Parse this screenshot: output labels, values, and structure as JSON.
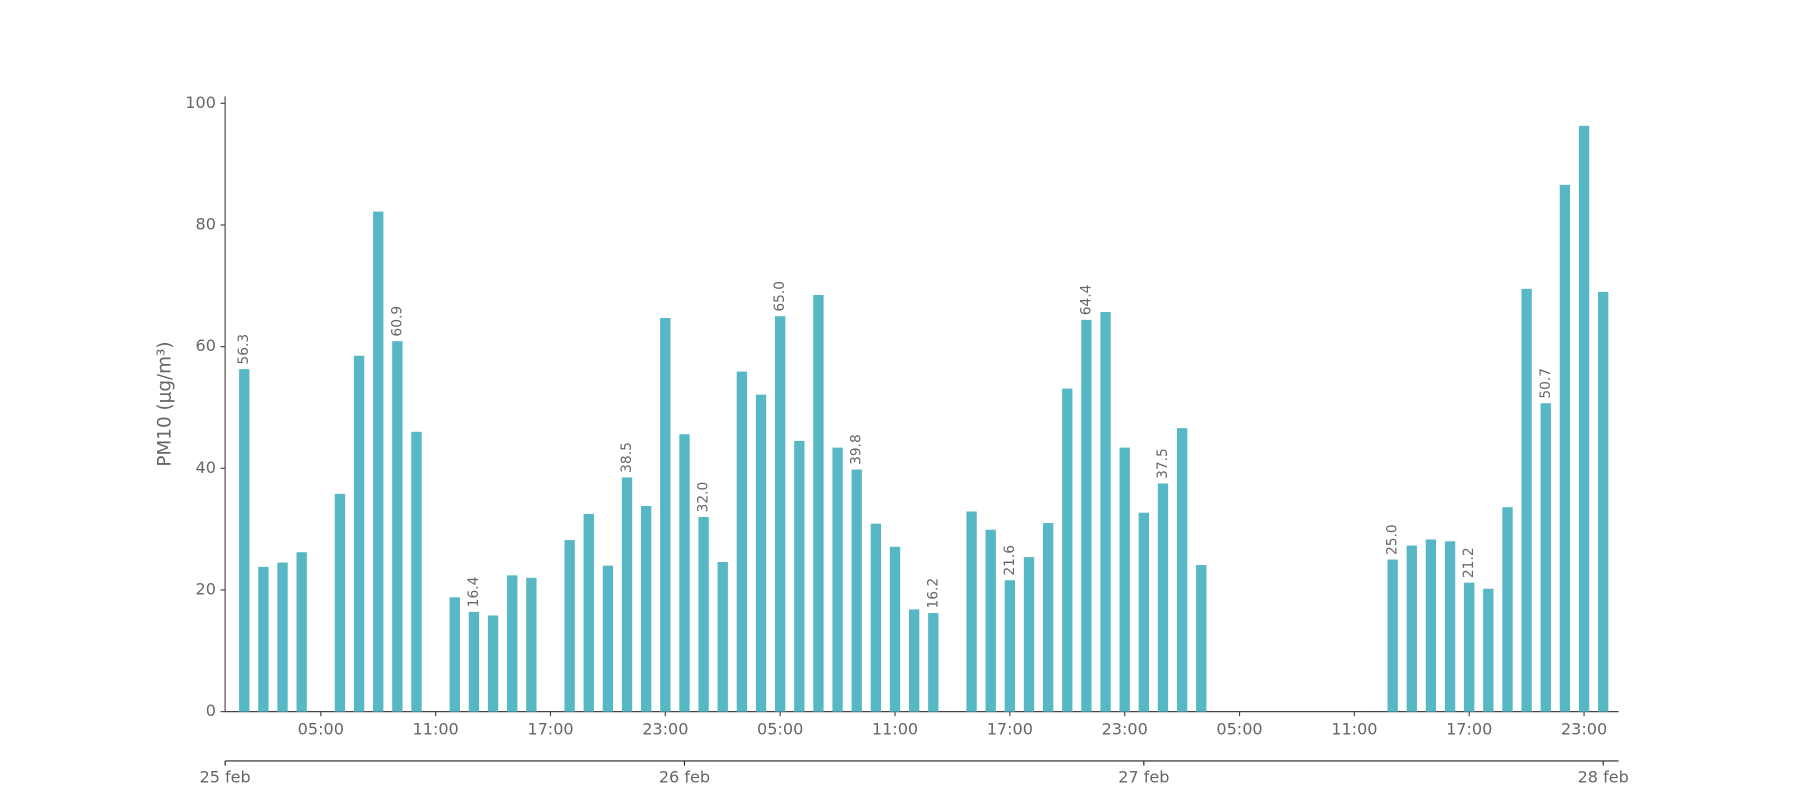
{
  "chart_data": {
    "type": "bar",
    "y_label": "PM10 (μg/m³)",
    "color": "#56b8c4",
    "x": [
      1,
      2,
      3,
      4,
      6,
      7,
      8,
      9,
      10,
      12,
      13,
      14,
      15,
      16,
      18,
      19,
      20,
      21,
      22,
      23,
      24,
      25,
      26,
      27,
      28,
      29,
      30,
      31,
      32,
      33,
      34,
      35,
      36,
      37,
      39,
      40,
      41,
      42,
      43,
      44,
      45,
      46,
      47,
      48,
      49,
      50,
      51,
      61,
      62,
      63,
      64,
      65,
      66,
      67,
      68,
      69,
      70,
      71,
      72
    ],
    "values": [
      56.3,
      23.8,
      24.5,
      26.2,
      35.8,
      58.5,
      82.2,
      60.9,
      46.0,
      18.8,
      16.4,
      15.8,
      22.4,
      22.0,
      28.2,
      32.5,
      24.0,
      38.5,
      33.8,
      64.7,
      45.6,
      32.0,
      24.6,
      55.9,
      52.1,
      65.0,
      44.5,
      68.5,
      43.4,
      39.8,
      30.9,
      27.1,
      16.8,
      16.2,
      32.9,
      29.9,
      21.6,
      25.4,
      31.0,
      53.1,
      64.4,
      65.7,
      43.4,
      32.7,
      37.5,
      46.6,
      24.1,
      25.0,
      27.3,
      28.3,
      28.0,
      21.2,
      20.2,
      33.6,
      69.5,
      50.7,
      86.6,
      96.3,
      69.0
    ],
    "value_labels": [
      "56.3",
      null,
      null,
      null,
      null,
      null,
      null,
      "60.9",
      null,
      null,
      "16.4",
      null,
      null,
      null,
      null,
      null,
      null,
      "38.5",
      null,
      null,
      null,
      "32.0",
      null,
      null,
      null,
      "65.0",
      null,
      null,
      null,
      "39.8",
      null,
      null,
      null,
      "16.2",
      null,
      null,
      "21.6",
      null,
      null,
      null,
      "64.4",
      null,
      null,
      null,
      "37.5",
      null,
      null,
      "25.0",
      null,
      null,
      null,
      "21.2",
      null,
      null,
      null,
      "50.7",
      null,
      null,
      null
    ],
    "xlim": [
      0,
      72.8
    ],
    "xticks": [
      {
        "value": 5,
        "label": "05:00"
      },
      {
        "value": 11,
        "label": "11:00"
      },
      {
        "value": 17,
        "label": "17:00"
      },
      {
        "value": 23,
        "label": "23:00"
      },
      {
        "value": 29,
        "label": "05:00"
      },
      {
        "value": 35,
        "label": "11:00"
      },
      {
        "value": 41,
        "label": "17:00"
      },
      {
        "value": 47,
        "label": "23:00"
      },
      {
        "value": 53,
        "label": "05:00"
      },
      {
        "value": 59,
        "label": "11:00"
      },
      {
        "value": 65,
        "label": "17:00"
      },
      {
        "value": 71,
        "label": "23:00"
      }
    ],
    "date_ticks": [
      {
        "value": 0,
        "label": "25 feb"
      },
      {
        "value": 24,
        "label": "26 feb"
      },
      {
        "value": 48,
        "label": "27 feb"
      },
      {
        "value": 72,
        "label": "28 feb"
      }
    ],
    "ylim": [
      0,
      100
    ],
    "yticks": [
      0,
      20,
      40,
      60,
      80,
      100
    ]
  }
}
